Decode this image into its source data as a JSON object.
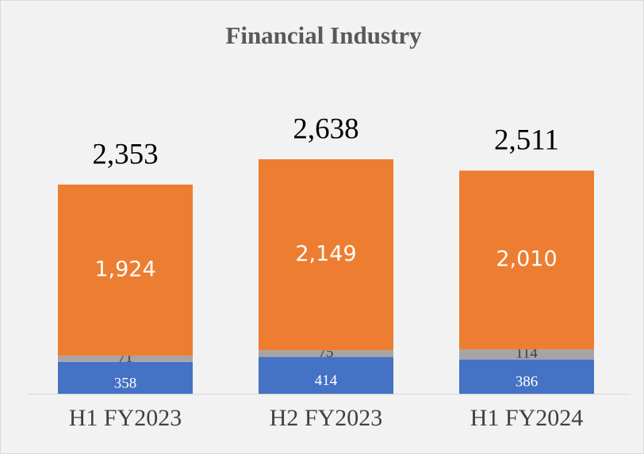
{
  "chart_data": {
    "type": "stacked_bar",
    "title": "Financial Industry",
    "categories": [
      "H1 FY2023",
      "H2 FY2023",
      "H1 FY2024"
    ],
    "series": [
      {
        "color": "#4472c4",
        "values": [
          358,
          414,
          386
        ]
      },
      {
        "color": "#a5a5a5",
        "values": [
          71,
          75,
          114
        ]
      },
      {
        "color": "#ed7d31",
        "values": [
          1924,
          2149,
          2010
        ],
        "value_labels": [
          "1,924",
          "2,149",
          "2,010"
        ]
      }
    ],
    "totals": [
      2353,
      2638,
      2511
    ],
    "total_labels": [
      "2,353",
      "2,638",
      "2,511"
    ]
  }
}
